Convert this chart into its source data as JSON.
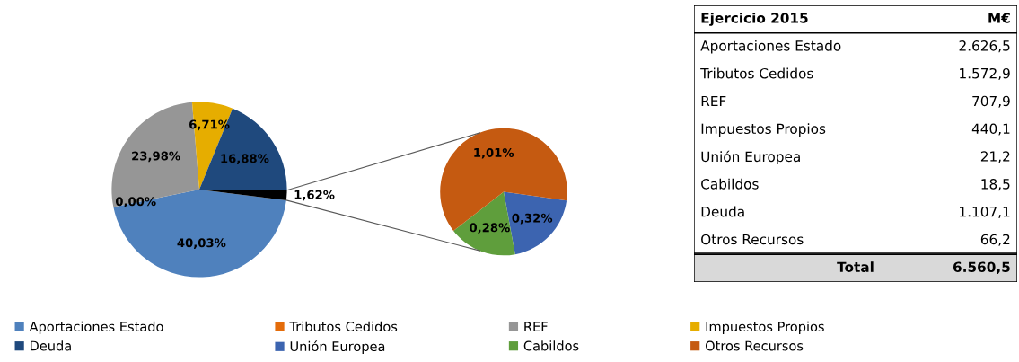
{
  "chart_data": [
    {
      "type": "pie",
      "categories": [
        "Aportaciones Estado",
        "Tributos Cedidos",
        "REF",
        "Impuestos Propios",
        "Deuda",
        null
      ],
      "values": [
        40.03,
        0.0,
        23.98,
        6.71,
        16.88,
        1.62
      ],
      "colors": [
        "#4f81bd",
        "#e46c0a",
        "#969696",
        "#e6ad00",
        "#1f497d",
        "#000000"
      ],
      "value_labels": [
        "40,03%",
        "0,00%",
        "23,98%",
        "6,71%",
        "16,88%",
        "1,62%"
      ],
      "legend": "bottom"
    },
    {
      "type": "pie",
      "categories": [
        "Unión Europea",
        "Cabildos",
        "Otros Recursos"
      ],
      "values": [
        0.32,
        0.28,
        1.01
      ],
      "colors": [
        "#3c64b0",
        "#5f9e3c",
        "#c55a11"
      ],
      "value_labels": [
        "0,32%",
        "0,28%",
        "1,01%"
      ],
      "legend": "bottom"
    },
    {
      "type": "other",
      "title": "Ejercicio 2015",
      "categories": [
        "Aportaciones Estado",
        "Tributos Cedidos",
        "REF",
        "Impuestos Propios",
        "Unión Europea",
        "Cabildos",
        "Deuda",
        "Otros Recursos"
      ],
      "value_labels": [
        "2.626,5",
        "1.572,9",
        "707,9",
        "440,1",
        "21,2",
        "18,5",
        "1.107,1",
        "66,2"
      ],
      "annotations": [
        "M€",
        "Total"
      ],
      "totals": [
        "6.560,5"
      ]
    }
  ]
}
